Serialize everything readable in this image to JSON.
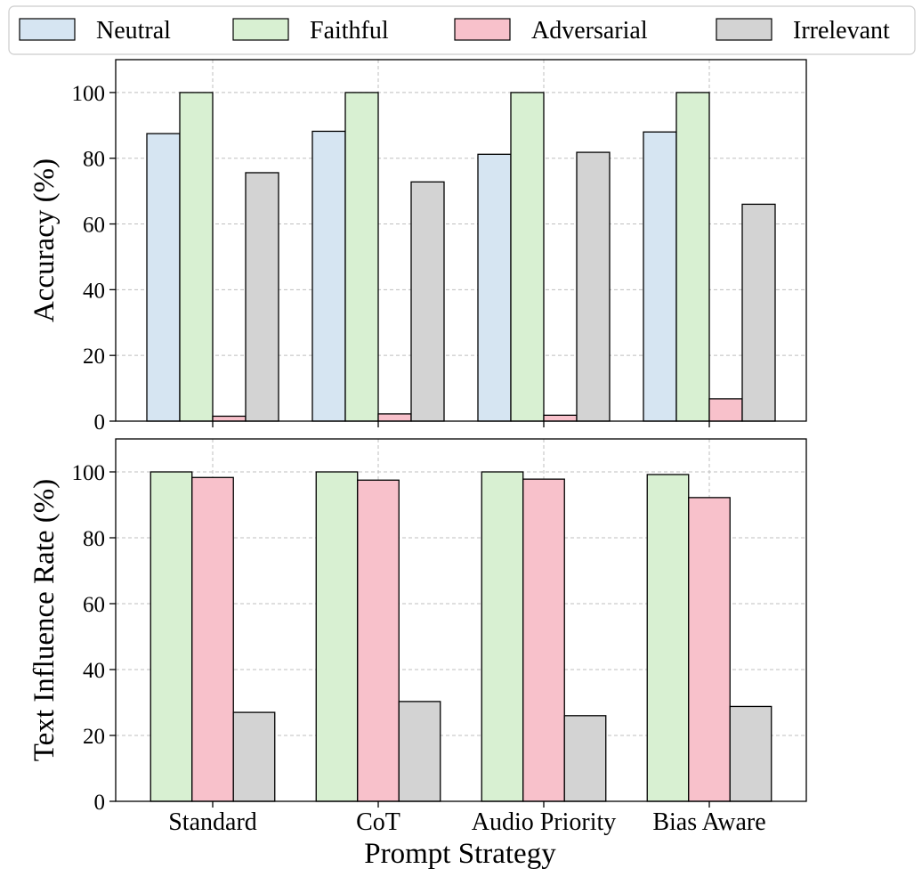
{
  "colors": {
    "Neutral": "#d6e5f2",
    "Faithful": "#d8f0d2",
    "Adversarial": "#f8c1cb",
    "Irrelevant": "#d3d3d3"
  },
  "legend": {
    "entries": [
      "Neutral",
      "Faithful",
      "Adversarial",
      "Irrelevant"
    ],
    "placement": "top"
  },
  "xlabel": "Prompt Strategy",
  "chart_data": [
    {
      "type": "bar",
      "categories": [
        "Standard",
        "CoT",
        "Audio Priority",
        "Bias Aware"
      ],
      "ylabel": "Accuracy (%)",
      "ylim": [
        0,
        110
      ],
      "yticks": [
        0,
        20,
        40,
        60,
        80,
        100
      ],
      "grid": true,
      "series": [
        {
          "name": "Neutral",
          "values": [
            87.5,
            88.2,
            81.2,
            88.0
          ]
        },
        {
          "name": "Faithful",
          "values": [
            100,
            100,
            100,
            100
          ]
        },
        {
          "name": "Adversarial",
          "values": [
            1.5,
            2.2,
            1.8,
            6.8
          ]
        },
        {
          "name": "Irrelevant",
          "values": [
            75.6,
            72.8,
            81.8,
            66.0
          ]
        }
      ]
    },
    {
      "type": "bar",
      "categories": [
        "Standard",
        "CoT",
        "Audio Priority",
        "Bias Aware"
      ],
      "ylabel": "Text Influence Rate (%)",
      "ylim": [
        0,
        110
      ],
      "yticks": [
        0,
        20,
        40,
        60,
        80,
        100
      ],
      "grid": true,
      "xlabel": "Prompt Strategy",
      "series": [
        {
          "name": "Faithful",
          "values": [
            100,
            100,
            100,
            99.2
          ]
        },
        {
          "name": "Adversarial",
          "values": [
            98.3,
            97.5,
            97.8,
            92.2
          ]
        },
        {
          "name": "Irrelevant",
          "values": [
            27.0,
            30.3,
            26.0,
            28.8
          ]
        }
      ]
    }
  ]
}
